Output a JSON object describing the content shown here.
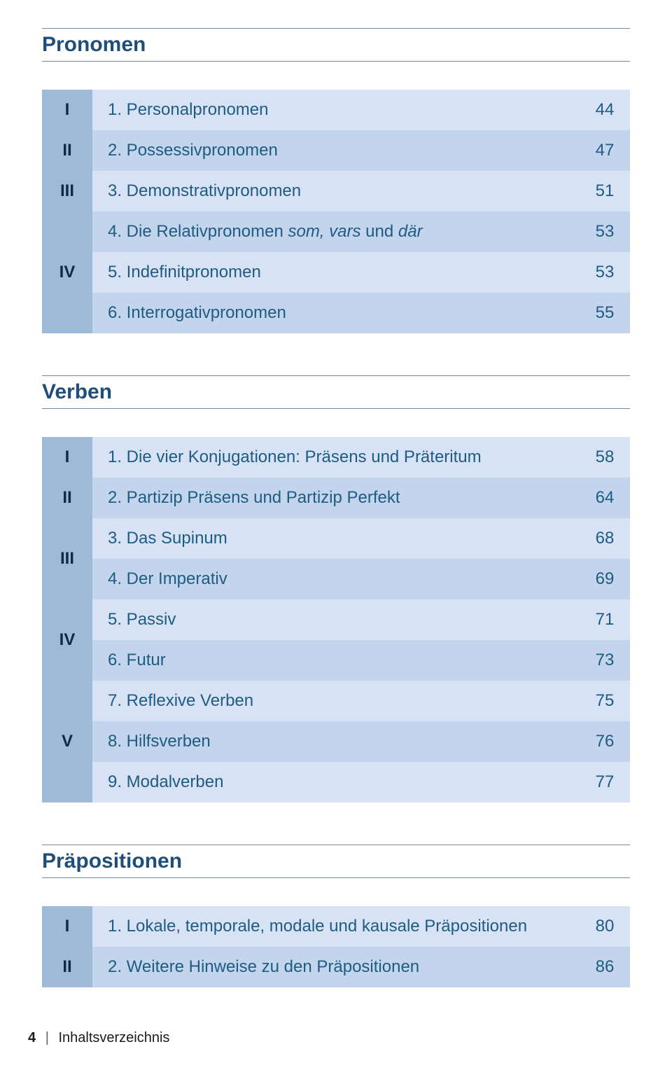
{
  "colors": {
    "heading": "#1f4e79",
    "rule": "#6f8aa6",
    "roman_bg": "#9fbad8",
    "roman_text": "#0f2a45",
    "row_light": "#d7e3f4",
    "row_dark": "#c2d5ed",
    "label_text": "#1f5b82",
    "page_text": "#1f5b82",
    "footer_text": "#1a1a1a"
  },
  "sections": {
    "pronomen": {
      "title": "Pronomen",
      "rows": [
        {
          "roman": "I",
          "label": "1. Personalpronomen",
          "page": "44"
        },
        {
          "roman": "II",
          "label": "2. Possessivpronomen",
          "page": "47"
        },
        {
          "roman": "III",
          "label": "3. Demonstrativpronomen",
          "page": "51"
        },
        {
          "roman": "",
          "label_pre": "4. Die Relativpronomen ",
          "label_it": "som, vars",
          "label_mid": " und ",
          "label_it2": "där",
          "page": "53"
        },
        {
          "roman": "IV",
          "label": "5. Indefinitpronomen",
          "page": "53"
        },
        {
          "roman": "",
          "label": "6. Interrogativpronomen",
          "page": "55"
        }
      ]
    },
    "verben": {
      "title": "Verben",
      "rows": [
        {
          "roman": "I",
          "label": "1. Die vier Konjugationen: Präsens und Präteritum",
          "page": "58"
        },
        {
          "roman": "II",
          "label": "2. Partizip Präsens und Partizip Perfekt",
          "page": "64"
        },
        {
          "roman": "",
          "label": "3. Das Supinum",
          "page": "68"
        },
        {
          "roman": "III",
          "label": "4. Der Imperativ",
          "page": "69"
        },
        {
          "roman": "",
          "label": "5. Passiv",
          "page": "71"
        },
        {
          "roman": "IV",
          "label": "6. Futur",
          "page": "73"
        },
        {
          "roman": "",
          "label": "7. Reflexive Verben",
          "page": "75"
        },
        {
          "roman": "V",
          "label": "8. Hilfsverben",
          "page": "76"
        },
        {
          "roman": "",
          "label": "9. Modalverben",
          "page": "77"
        }
      ]
    },
    "praepositionen": {
      "title": "Präpositionen",
      "rows": [
        {
          "roman": "I",
          "label": "1. Lokale, temporale, modale und kausale Präpositionen",
          "page": "80"
        },
        {
          "roman": "II",
          "label": "2. Weitere Hinweise zu den Präpositionen",
          "page": "86"
        }
      ]
    }
  },
  "footer": {
    "page_number": "4",
    "label": "Inhaltsverzeichnis"
  }
}
